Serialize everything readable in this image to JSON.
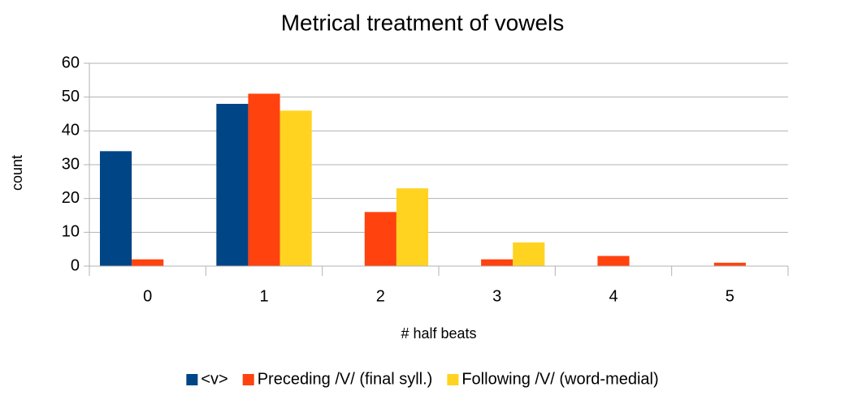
{
  "chart_data": {
    "type": "bar",
    "title": "Metrical treatment of vowels",
    "x_label": "# half beats",
    "y_label": "count",
    "categories": [
      "0",
      "1",
      "2",
      "3",
      "4",
      "5"
    ],
    "series": [
      {
        "name": "<v>",
        "color": "#004586",
        "values": [
          34,
          48,
          0,
          0,
          0,
          0
        ]
      },
      {
        "name": "Preceding /V/ (final syll.)",
        "color": "#ff420e",
        "values": [
          2,
          51,
          16,
          2,
          3,
          1
        ]
      },
      {
        "name": "Following /V/ (word-medial)",
        "color": "#ffd320",
        "values": [
          0,
          46,
          23,
          7,
          0,
          0
        ]
      }
    ],
    "ylim": [
      0,
      60
    ],
    "yticks": [
      0,
      10,
      20,
      30,
      40,
      50,
      60
    ],
    "grid": true,
    "legend": "bottom"
  }
}
